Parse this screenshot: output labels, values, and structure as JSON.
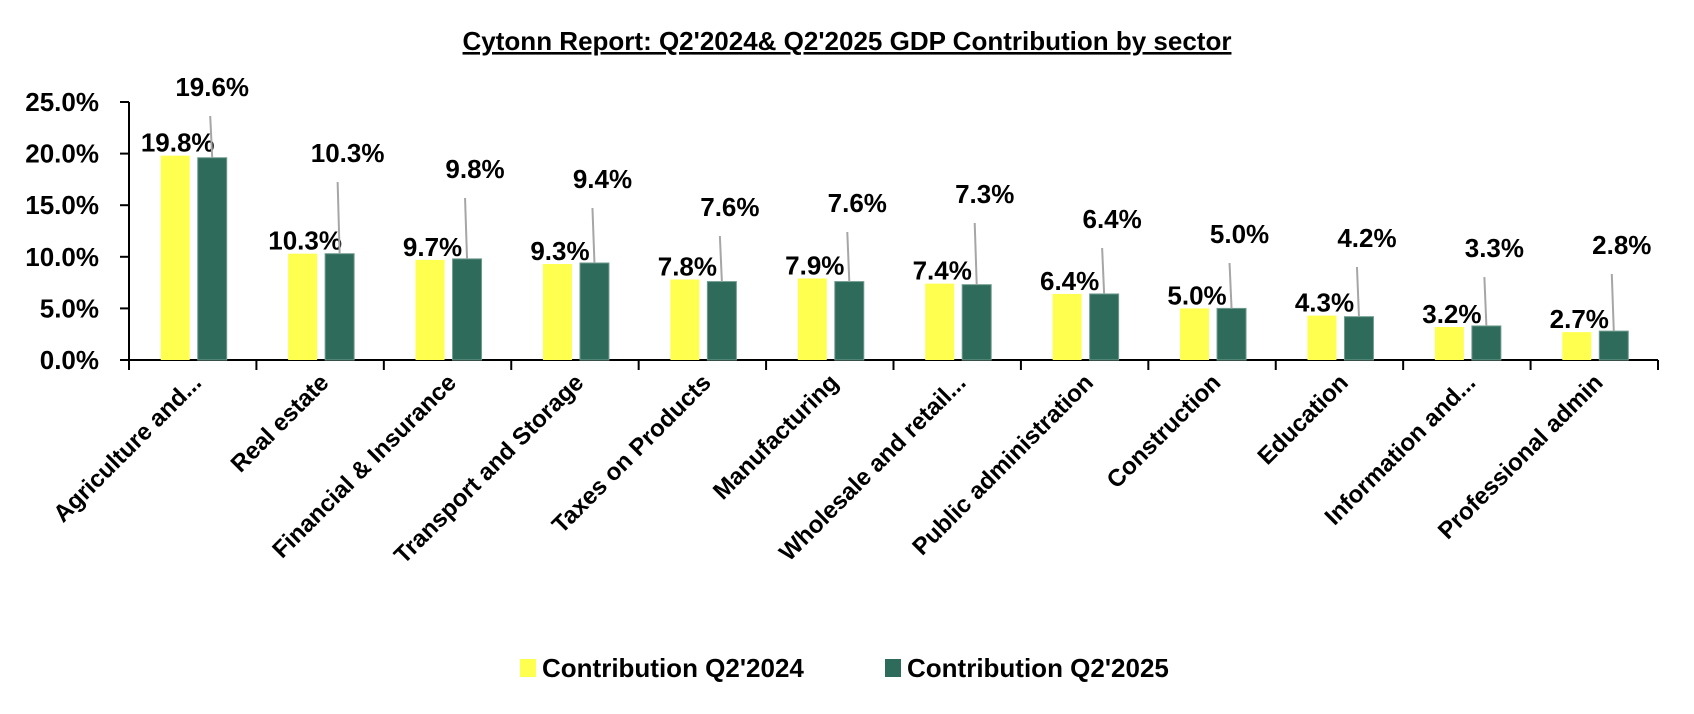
{
  "chart_data": {
    "type": "bar",
    "title": "Cytonn Report: Q2'2024& Q2'2025 GDP Contribution by sector",
    "xlabel": "",
    "ylabel": "",
    "ylim": [
      0,
      25
    ],
    "yticks": [
      0,
      5,
      10,
      15,
      20,
      25
    ],
    "ytick_labels": [
      "0.0%",
      "5.0%",
      "10.0%",
      "15.0%",
      "20.0%",
      "25.0%"
    ],
    "grid": false,
    "legend_position": "bottom",
    "categories": [
      "Agriculture and...",
      "Real estate",
      "Financial & Insurance",
      "Transport and Storage",
      "Taxes on Products",
      "Manufacturing",
      "Wholesale and retail...",
      "Public administration",
      "Construction",
      "Education",
      "Information and...",
      "Professional admin"
    ],
    "series": [
      {
        "name": "Contribution Q2'2024",
        "color": "#FFFF4F",
        "values": [
          19.8,
          10.3,
          9.7,
          9.3,
          7.8,
          7.9,
          7.4,
          6.4,
          5.0,
          4.3,
          3.2,
          2.7
        ],
        "labels": [
          "19.8%",
          "10.3%",
          "9.7%",
          "9.3%",
          "7.8%",
          "7.9%",
          "7.4%",
          "6.4%",
          "5.0%",
          "4.3%",
          "3.2%",
          "2.7%"
        ]
      },
      {
        "name": "Contribution Q2'2025",
        "color": "#2E6B5A",
        "values": [
          19.6,
          10.3,
          9.8,
          9.4,
          7.6,
          7.6,
          7.3,
          6.4,
          5.0,
          4.2,
          3.3,
          2.8
        ],
        "labels": [
          "19.6%",
          "10.3%",
          "9.8%",
          "9.4%",
          "7.6%",
          "7.6%",
          "7.3%",
          "6.4%",
          "5.0%",
          "4.2%",
          "3.3%",
          "2.8%"
        ]
      }
    ],
    "leader_line_color": "#A6A6A6"
  }
}
